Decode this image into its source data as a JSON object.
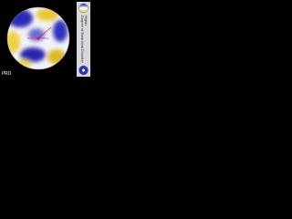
{
  "label": "PRO",
  "legend": {
    "title": "Degree of Rotational Disorder",
    "high": "Higher"
  }
}
